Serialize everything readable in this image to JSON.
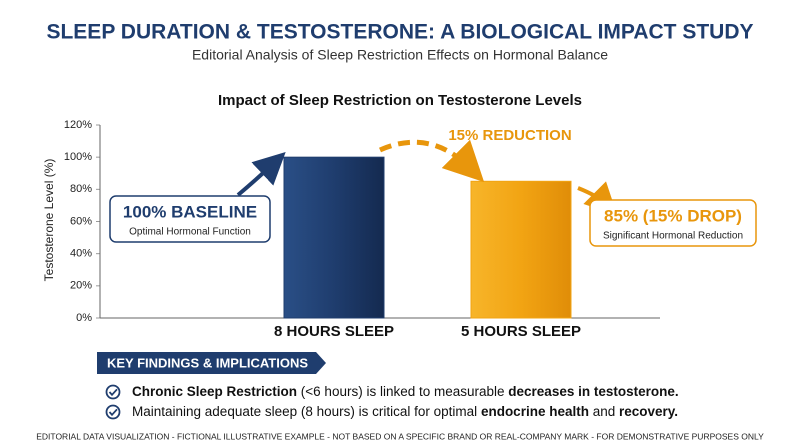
{
  "chart_data": {
    "type": "bar",
    "title": "SLEEP DURATION & TESTOSTERONE: A BIOLOGICAL IMPACT STUDY",
    "subtitle": "Editorial Analysis of Sleep Restriction Effects on Hormonal Balance",
    "chart_title": "Impact of Sleep Restriction on Testosterone Levels",
    "y_label": "Testosterone Level (%)",
    "categories": [
      "8 HOURS SLEEP",
      "5 HOURS SLEEP"
    ],
    "values": [
      100,
      85
    ],
    "colors": [
      "#1f3d6e",
      "#f2a413"
    ],
    "ylim": [
      0,
      120
    ],
    "yticks": [
      {
        "value": 0,
        "label": "0%"
      },
      {
        "value": 20,
        "label": "20%"
      },
      {
        "value": 40,
        "label": "40%"
      },
      {
        "value": 60,
        "label": "60%"
      },
      {
        "value": 80,
        "label": "80%"
      },
      {
        "value": 100,
        "label": "100%"
      },
      {
        "value": 120,
        "label": "120%"
      }
    ],
    "grid": false,
    "annotations": {
      "reduction": "15% REDUCTION",
      "baseline_title": "100% BASELINE",
      "baseline_note": "Optimal Hormonal Function",
      "drop_title": "85% (15% DROP)",
      "drop_note": "Significant Hormonal Reduction"
    }
  },
  "findings": {
    "heading": "KEY FINDINGS & IMPLICATIONS",
    "items": [
      [
        {
          "text": "Chronic Sleep Restriction",
          "bold": true
        },
        {
          "text": " (<6 hours) is linked to measurable ",
          "bold": false
        },
        {
          "text": "decreases in testosterone.",
          "bold": true
        }
      ],
      [
        {
          "text": "Maintaining adequate sleep (8 hours) is critical for optimal ",
          "bold": false
        },
        {
          "text": "endocrine health",
          "bold": true
        },
        {
          "text": " and ",
          "bold": false
        },
        {
          "text": "recovery.",
          "bold": true
        }
      ]
    ]
  },
  "footer": "EDITORIAL DATA VISUALIZATION - FICTIONAL ILLUSTRATIVE EXAMPLE - NOT BASED ON A SPECIFIC BRAND OR REAL-COMPANY MARK - FOR DEMONSTRATIVE PURPOSES ONLY"
}
